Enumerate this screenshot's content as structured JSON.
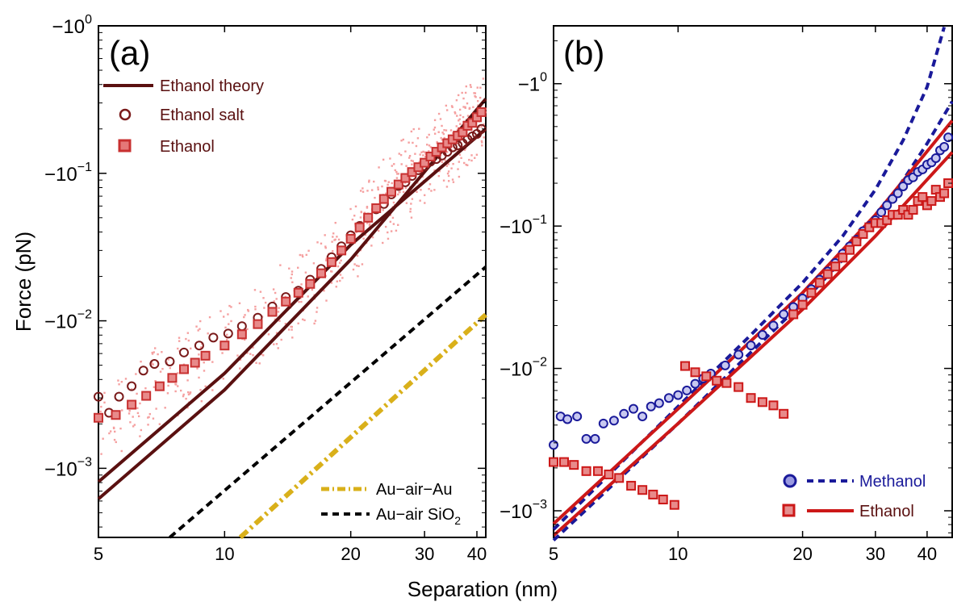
{
  "figure": {
    "xlabel": "Separation (nm)",
    "ylabel": "Force (pN)"
  },
  "chart_data": [
    {
      "panel": "(a)",
      "type": "scatter",
      "xscale": "log",
      "yscale": "log",
      "ylabel": "Force (pN)",
      "xlim": [
        5,
        42
      ],
      "ylim_abs": [
        0.00034,
        1.0
      ],
      "xticks": [
        5,
        10,
        20,
        30,
        40
      ],
      "xtick_labels": [
        "5",
        "10",
        "20",
        "30",
        "40"
      ],
      "yticks_abs": [
        1.0,
        0.1,
        0.01,
        0.001
      ],
      "ytick_bases": [
        "−10",
        "−10",
        "−10",
        "−10"
      ],
      "ytick_exps": [
        "0",
        "−1",
        "−2",
        "−3"
      ],
      "grid": false,
      "legend_upper": {
        "placement": "top-left",
        "entries": [
          {
            "label": "Ethanol theory",
            "marker": "line",
            "color": "#5a1010"
          },
          {
            "label": "Ethanol salt",
            "marker": "circle",
            "color": "#7a1a1a"
          },
          {
            "label": "Ethanol",
            "marker": "square",
            "color": "#c83030"
          }
        ]
      },
      "legend_lower": {
        "placement": "bottom-right",
        "entries": [
          {
            "label": "Au−air−Au",
            "style": "dash-dot",
            "color": "#d9b01a"
          },
          {
            "label": "Au−air SiO",
            "sub": "2",
            "style": "dashed",
            "color": "#000000"
          }
        ]
      },
      "series": [
        {
          "name": "Ethanol theory",
          "type": "line",
          "color": "#5a1010",
          "points": [
            [
              5,
              0.00081
            ],
            [
              10,
              0.0044
            ],
            [
              20,
              0.0328
            ],
            [
              42,
              0.2
            ]
          ]
        },
        {
          "name": "Ethanol theory",
          "type": "line",
          "color": "#5a1010",
          "points": [
            [
              5,
              0.00062
            ],
            [
              10,
              0.0034
            ],
            [
              20,
              0.026
            ],
            [
              42,
              0.32
            ]
          ]
        },
        {
          "name": "Au−air SiO2",
          "type": "line",
          "style": "dashed",
          "color": "#000000",
          "points": [
            [
              7.4,
              0.00034
            ],
            [
              42,
              0.0232
            ]
          ]
        },
        {
          "name": "Au−air−Au",
          "type": "line",
          "style": "dash-dot",
          "color": "#d9b01a",
          "points": [
            [
              10.9,
              0.00034
            ],
            [
              42,
              0.011
            ]
          ]
        },
        {
          "name": "Ethanol salt",
          "type": "scatter",
          "marker": "circle",
          "color": "#7a1a1a",
          "points": [
            [
              5,
              0.00306
            ],
            [
              5.3,
              0.00238
            ],
            [
              5.6,
              0.00306
            ],
            [
              6,
              0.0036
            ],
            [
              6.4,
              0.0046
            ],
            [
              6.8,
              0.0051
            ],
            [
              7.4,
              0.0053
            ],
            [
              8,
              0.0061
            ],
            [
              8.7,
              0.0068
            ],
            [
              9.4,
              0.0077
            ],
            [
              10.2,
              0.0082
            ],
            [
              11,
              0.0092
            ],
            [
              12,
              0.0105
            ],
            [
              13,
              0.0125
            ],
            [
              14,
              0.0145
            ],
            [
              15,
              0.016
            ],
            [
              16,
              0.019
            ],
            [
              17,
              0.0225
            ],
            [
              18,
              0.027
            ],
            [
              19,
              0.032
            ],
            [
              20,
              0.038
            ],
            [
              21,
              0.044
            ],
            [
              22,
              0.05
            ],
            [
              23,
              0.057
            ],
            [
              24,
              0.062
            ],
            [
              25,
              0.072
            ],
            [
              26,
              0.082
            ],
            [
              27,
              0.087
            ],
            [
              28,
              0.096
            ],
            [
              29,
              0.105
            ],
            [
              30,
              0.112
            ],
            [
              31,
              0.12
            ],
            [
              32,
              0.125
            ],
            [
              33,
              0.132
            ],
            [
              34,
              0.14
            ],
            [
              35,
              0.15
            ],
            [
              36,
              0.155
            ],
            [
              37,
              0.16
            ],
            [
              38,
              0.17
            ],
            [
              39,
              0.178
            ],
            [
              40,
              0.185
            ],
            [
              41,
              0.2
            ]
          ]
        },
        {
          "name": "Ethanol",
          "type": "scatter",
          "marker": "square",
          "color": "#c83030",
          "points": [
            [
              5,
              0.0022
            ],
            [
              5.5,
              0.0023
            ],
            [
              6,
              0.0027
            ],
            [
              6.5,
              0.0031
            ],
            [
              7,
              0.0036
            ],
            [
              7.5,
              0.0041
            ],
            [
              8,
              0.0047
            ],
            [
              8.5,
              0.0052
            ],
            [
              9,
              0.0058
            ],
            [
              10,
              0.0068
            ],
            [
              11,
              0.0081
            ],
            [
              12,
              0.0095
            ],
            [
              13,
              0.0115
            ],
            [
              14,
              0.0135
            ],
            [
              15,
              0.0155
            ],
            [
              16,
              0.0178
            ],
            [
              17,
              0.021
            ],
            [
              18,
              0.025
            ],
            [
              19,
              0.03
            ],
            [
              20,
              0.036
            ],
            [
              21,
              0.043
            ],
            [
              22,
              0.05
            ],
            [
              23,
              0.058
            ],
            [
              24,
              0.067
            ],
            [
              25,
              0.075
            ],
            [
              26,
              0.084
            ],
            [
              27,
              0.093
            ],
            [
              28,
              0.102
            ],
            [
              29,
              0.11
            ],
            [
              30,
              0.118
            ],
            [
              31,
              0.13
            ],
            [
              32,
              0.14
            ],
            [
              33,
              0.15
            ],
            [
              34,
              0.16
            ],
            [
              35,
              0.17
            ],
            [
              36,
              0.18
            ],
            [
              37,
              0.19
            ],
            [
              38,
              0.21
            ],
            [
              39,
              0.22
            ],
            [
              40,
              0.24
            ],
            [
              41,
              0.26
            ]
          ]
        }
      ]
    },
    {
      "panel": "(b)",
      "type": "scatter",
      "xscale": "log",
      "yscale": "log",
      "xlim": [
        5,
        46
      ],
      "ylim_abs": [
        0.00065,
        2.55
      ],
      "xticks": [
        5,
        10,
        20,
        30,
        40
      ],
      "xtick_labels": [
        "5",
        "10",
        "20",
        "30",
        "40"
      ],
      "yticks_abs": [
        1.0,
        0.1,
        0.01,
        0.001
      ],
      "ytick_bases": [
        "−1",
        "−10",
        "−10",
        "−10"
      ],
      "ytick_exps": [
        "0",
        "−1",
        "−2",
        "−3"
      ],
      "grid": false,
      "legend": {
        "placement": "bottom-right",
        "entries": [
          {
            "label": "Methanol",
            "marker": "circle",
            "style": "dashed",
            "color": "#1a1a9a",
            "fill": "#9a9ae0"
          },
          {
            "label": "Ethanol",
            "marker": "square",
            "style": "solid",
            "color": "#cc1818",
            "fill": "#e59090"
          }
        ]
      },
      "series": [
        {
          "name": "Methanol",
          "type": "line",
          "style": "dashed",
          "color": "#1a1a9a",
          "points": [
            [
              5,
              0.00074
            ],
            [
              10,
              0.0054
            ],
            [
              15,
              0.0172
            ],
            [
              20,
              0.04
            ],
            [
              25,
              0.085
            ],
            [
              30,
              0.18
            ],
            [
              35,
              0.4
            ],
            [
              40,
              0.95
            ],
            [
              44,
              2.5
            ]
          ]
        },
        {
          "name": "Methanol",
          "type": "line",
          "style": "dashed",
          "color": "#1a1a9a",
          "points": [
            [
              5,
              0.00062
            ],
            [
              10,
              0.0041
            ],
            [
              15,
              0.013
            ],
            [
              20,
              0.029
            ],
            [
              25,
              0.058
            ],
            [
              30,
              0.11
            ],
            [
              35,
              0.21
            ],
            [
              40,
              0.38
            ],
            [
              46,
              0.75
            ]
          ]
        },
        {
          "name": "Ethanol",
          "type": "line",
          "color": "#cc1818",
          "points": [
            [
              5,
              0.00081
            ],
            [
              10,
              0.0052
            ],
            [
              20,
              0.034
            ],
            [
              30,
              0.12
            ],
            [
              46,
              0.55
            ]
          ]
        },
        {
          "name": "Ethanol",
          "type": "line",
          "color": "#cc1818",
          "points": [
            [
              5,
              0.00067
            ],
            [
              10,
              0.0041
            ],
            [
              20,
              0.026
            ],
            [
              30,
              0.085
            ],
            [
              46,
              0.33
            ]
          ]
        },
        {
          "name": "Methanol",
          "type": "scatter",
          "marker": "circle",
          "color": "#1a1a9a",
          "points": [
            [
              5,
              0.0029
            ],
            [
              5.2,
              0.0046
            ],
            [
              5.4,
              0.0044
            ],
            [
              5.7,
              0.0046
            ],
            [
              6,
              0.0032
            ],
            [
              6.3,
              0.0032
            ],
            [
              6.6,
              0.0041
            ],
            [
              7,
              0.0043
            ],
            [
              7.4,
              0.0048
            ],
            [
              7.8,
              0.0052
            ],
            [
              8.2,
              0.0046
            ],
            [
              8.6,
              0.0054
            ],
            [
              9,
              0.0057
            ],
            [
              9.5,
              0.0062
            ],
            [
              10,
              0.0065
            ],
            [
              10.5,
              0.007
            ],
            [
              11,
              0.0078
            ],
            [
              11.5,
              0.0085
            ],
            [
              12,
              0.0092
            ],
            [
              13,
              0.0105
            ],
            [
              14,
              0.0125
            ],
            [
              15,
              0.0145
            ],
            [
              16,
              0.0172
            ],
            [
              17,
              0.02
            ],
            [
              18,
              0.024
            ],
            [
              19,
              0.027
            ],
            [
              20,
              0.031
            ],
            [
              21,
              0.036
            ],
            [
              22,
              0.042
            ],
            [
              23,
              0.048
            ],
            [
              24,
              0.055
            ],
            [
              25,
              0.064
            ],
            [
              26,
              0.072
            ],
            [
              27,
              0.08
            ],
            [
              28,
              0.092
            ],
            [
              29,
              0.1
            ],
            [
              30,
              0.11
            ],
            [
              31,
              0.125
            ],
            [
              32,
              0.14
            ],
            [
              33,
              0.155
            ],
            [
              34,
              0.17
            ],
            [
              35,
              0.19
            ],
            [
              36,
              0.21
            ],
            [
              37,
              0.22
            ],
            [
              38,
              0.24
            ],
            [
              39,
              0.25
            ],
            [
              40,
              0.27
            ],
            [
              41,
              0.28
            ],
            [
              42,
              0.3
            ],
            [
              43,
              0.34
            ],
            [
              44,
              0.36
            ],
            [
              45,
              0.42
            ]
          ]
        },
        {
          "name": "Ethanol",
          "type": "scatter",
          "marker": "square",
          "color": "#cc1818",
          "points": [
            [
              5,
              0.0022
            ],
            [
              5.3,
              0.0022
            ],
            [
              5.6,
              0.0021
            ],
            [
              6,
              0.0019
            ],
            [
              6.4,
              0.0019
            ],
            [
              6.8,
              0.0018
            ],
            [
              7.2,
              0.0017
            ],
            [
              7.7,
              0.0015
            ],
            [
              8.2,
              0.0014
            ],
            [
              8.7,
              0.0013
            ],
            [
              9.2,
              0.0012
            ],
            [
              9.8,
              0.0011
            ],
            [
              10.4,
              0.0104
            ],
            [
              11,
              0.0094
            ],
            [
              11.7,
              0.0088
            ],
            [
              12.4,
              0.0082
            ],
            [
              13.1,
              0.0079
            ],
            [
              14,
              0.0074
            ],
            [
              15,
              0.0062
            ],
            [
              16,
              0.0058
            ],
            [
              17,
              0.0055
            ],
            [
              18,
              0.0048
            ],
            [
              19,
              0.024
            ],
            [
              20,
              0.028
            ],
            [
              21,
              0.034
            ],
            [
              22,
              0.04
            ],
            [
              23,
              0.046
            ],
            [
              24,
              0.052
            ],
            [
              25,
              0.06
            ],
            [
              26,
              0.068
            ],
            [
              27,
              0.078
            ],
            [
              28,
              0.088
            ],
            [
              29,
              0.098
            ],
            [
              30,
              0.105
            ],
            [
              31,
              0.105
            ],
            [
              32,
              0.11
            ],
            [
              33,
              0.12
            ],
            [
              34,
              0.12
            ],
            [
              35,
              0.13
            ],
            [
              36,
              0.12
            ],
            [
              37,
              0.13
            ],
            [
              38,
              0.15
            ],
            [
              39,
              0.16
            ],
            [
              40,
              0.14
            ],
            [
              41,
              0.15
            ],
            [
              42,
              0.18
            ],
            [
              43,
              0.16
            ],
            [
              44,
              0.17
            ],
            [
              45,
              0.2
            ]
          ]
        }
      ]
    }
  ]
}
